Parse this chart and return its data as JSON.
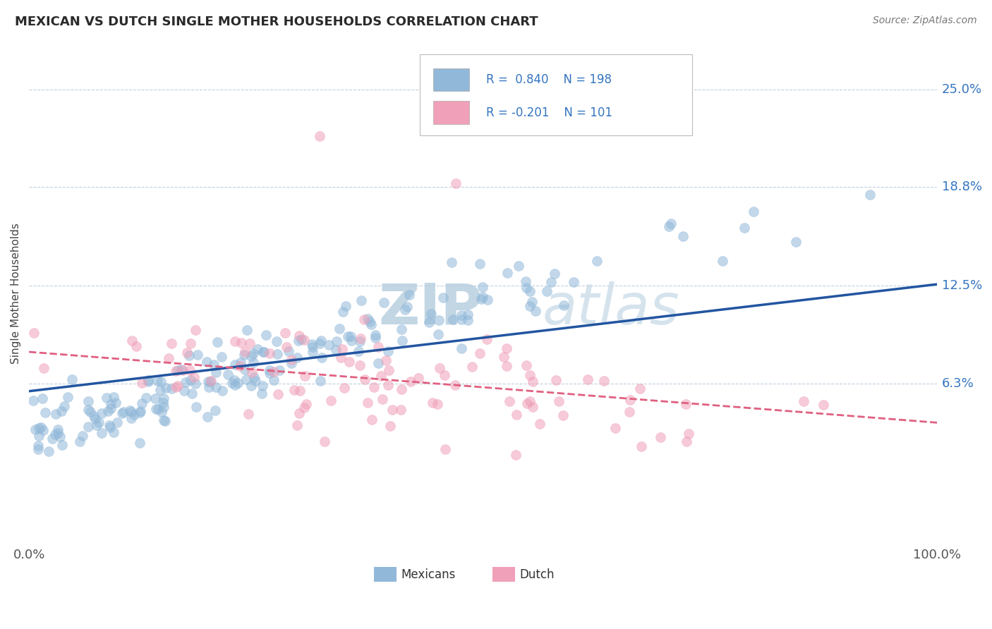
{
  "title": "MEXICAN VS DUTCH SINGLE MOTHER HOUSEHOLDS CORRELATION CHART",
  "source_text": "Source: ZipAtlas.com",
  "ylabel": "Single Mother Households",
  "xlim": [
    0.0,
    1.0
  ],
  "ylim": [
    -0.04,
    0.28
  ],
  "ytick_labels": [
    "6.3%",
    "12.5%",
    "18.8%",
    "25.0%"
  ],
  "ytick_values": [
    0.063,
    0.125,
    0.188,
    0.25
  ],
  "xtick_labels": [
    "0.0%",
    "100.0%"
  ],
  "xtick_values": [
    0.0,
    1.0
  ],
  "mexican_R": 0.84,
  "mexican_N": 198,
  "dutch_R": -0.201,
  "dutch_N": 101,
  "mexican_color": "#91b8d9",
  "dutch_color": "#f0a0b8",
  "mexican_line_color": "#2255a0",
  "dutch_line_color": "#e06080",
  "watermark_text": "ZIPatlas",
  "watermark_color": "#dce8f0",
  "background_color": "#ffffff",
  "grid_color": "#c0d0e0",
  "legend_r_color": "#3575c0",
  "title_color": "#2a2a2a",
  "axis_label_color": "#3575c0",
  "marker_size": 100,
  "marker_alpha": 0.55,
  "mexican_line_intercept": 0.058,
  "mexican_line_slope": 0.068,
  "dutch_line_intercept": 0.083,
  "dutch_line_slope": -0.045,
  "seed": 7
}
